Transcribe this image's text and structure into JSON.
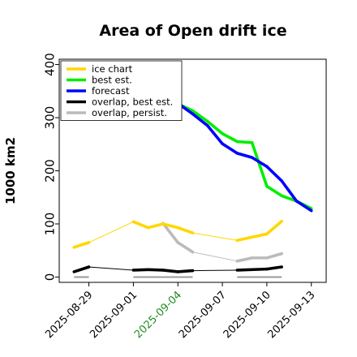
{
  "chart_data": {
    "type": "line",
    "title": "Area of Open drift ice",
    "xlabel": "",
    "ylabel": "1000 km2",
    "ylim": [
      -10,
      410
    ],
    "yticks": [
      0,
      100,
      200,
      300,
      400
    ],
    "xlim": [
      "2025-08-27",
      "2025-09-14"
    ],
    "xticks": [
      "2025-08-29",
      "2025-09-01",
      "2025-09-04",
      "2025-09-07",
      "2025-09-10",
      "2025-09-13"
    ],
    "highlight_tick": "2025-09-04",
    "highlight_color": "#228b22",
    "grid": false,
    "legend_position": "top-left",
    "series": [
      {
        "name": "ice chart",
        "color": "#ffd700",
        "points": [
          {
            "x": "2025-08-28",
            "y": 56,
            "style": "thick"
          },
          {
            "x": "2025-08-29",
            "y": 65,
            "style": "thick"
          },
          {
            "x": "2025-09-01",
            "y": 104,
            "style": "thin"
          },
          {
            "x": "2025-09-02",
            "y": 93,
            "style": "thick"
          },
          {
            "x": "2025-09-03",
            "y": 100,
            "style": "thick"
          },
          {
            "x": "2025-09-04",
            "y": 93,
            "style": "thick"
          },
          {
            "x": "2025-09-05",
            "y": 83,
            "style": "thick"
          },
          {
            "x": "2025-09-08",
            "y": 69,
            "style": "thin"
          },
          {
            "x": "2025-09-10",
            "y": 81,
            "style": "thick"
          },
          {
            "x": "2025-09-11",
            "y": 105,
            "style": "thick"
          }
        ]
      },
      {
        "name": "best est.",
        "color": "#00ee00",
        "points": [
          {
            "x": "2025-09-04",
            "y": 326
          },
          {
            "x": "2025-09-05",
            "y": 313
          },
          {
            "x": "2025-09-06",
            "y": 293
          },
          {
            "x": "2025-09-07",
            "y": 270
          },
          {
            "x": "2025-09-08",
            "y": 255
          },
          {
            "x": "2025-09-09",
            "y": 253
          },
          {
            "x": "2025-09-10",
            "y": 171
          },
          {
            "x": "2025-09-11",
            "y": 153
          },
          {
            "x": "2025-09-12",
            "y": 143
          },
          {
            "x": "2025-09-13",
            "y": 129
          }
        ]
      },
      {
        "name": "forecast",
        "color": "#0000ff",
        "points": [
          {
            "x": "2025-09-04",
            "y": 327
          },
          {
            "x": "2025-09-05",
            "y": 307
          },
          {
            "x": "2025-09-06",
            "y": 285
          },
          {
            "x": "2025-09-07",
            "y": 251
          },
          {
            "x": "2025-09-08",
            "y": 233
          },
          {
            "x": "2025-09-09",
            "y": 225
          },
          {
            "x": "2025-09-10",
            "y": 208
          },
          {
            "x": "2025-09-11",
            "y": 181
          },
          {
            "x": "2025-09-12",
            "y": 143
          },
          {
            "x": "2025-09-13",
            "y": 125
          }
        ]
      },
      {
        "name": "overlap, best est.",
        "color": "#000000",
        "points": [
          {
            "x": "2025-08-28",
            "y": 10,
            "style": "thick"
          },
          {
            "x": "2025-08-29",
            "y": 19,
            "style": "thick"
          },
          {
            "x": "2025-09-01",
            "y": 13,
            "style": "thin"
          },
          {
            "x": "2025-09-02",
            "y": 14,
            "style": "thick"
          },
          {
            "x": "2025-09-03",
            "y": 13,
            "style": "thick"
          },
          {
            "x": "2025-09-04",
            "y": 10,
            "style": "thick"
          },
          {
            "x": "2025-09-05",
            "y": 12,
            "style": "thick"
          },
          {
            "x": "2025-09-08",
            "y": 13,
            "style": "thin"
          },
          {
            "x": "2025-09-10",
            "y": 15,
            "style": "thick"
          },
          {
            "x": "2025-09-11",
            "y": 19,
            "style": "thick"
          }
        ]
      },
      {
        "name": "overlap, persist.",
        "color": "#bbbbbb",
        "points": [
          {
            "x": "2025-09-03",
            "y": 101,
            "style": "thick"
          },
          {
            "x": "2025-09-04",
            "y": 65,
            "style": "thick"
          },
          {
            "x": "2025-09-05",
            "y": 47,
            "style": "thick"
          },
          {
            "x": "2025-09-08",
            "y": 30,
            "style": "thin"
          },
          {
            "x": "2025-09-09",
            "y": 36,
            "style": "thick"
          },
          {
            "x": "2025-09-10",
            "y": 36,
            "style": "thick"
          },
          {
            "x": "2025-09-11",
            "y": 44,
            "style": "thick"
          }
        ]
      }
    ],
    "baseline_segments": [
      {
        "from": "2025-08-28",
        "to": "2025-08-29",
        "y": 0
      },
      {
        "from": "2025-09-01",
        "to": "2025-09-05",
        "y": 0
      },
      {
        "from": "2025-09-08",
        "to": "2025-09-11",
        "y": 0
      }
    ],
    "baseline_color": "#999999"
  }
}
